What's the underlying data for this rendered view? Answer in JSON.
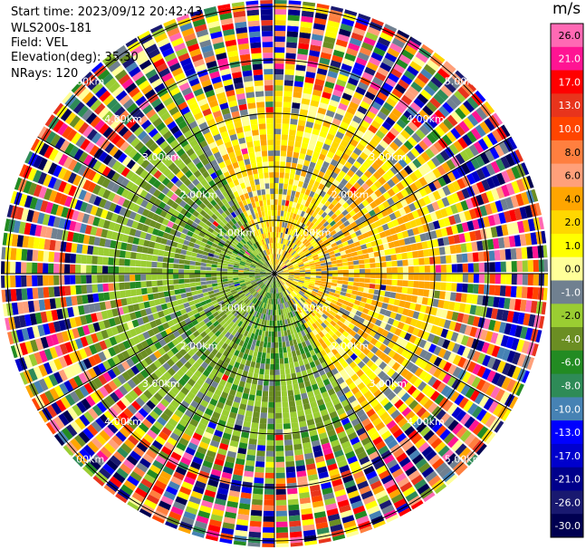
{
  "header": {
    "start_time": "Start time: 2023/09/12 20:42:43",
    "instrument": "WLS200s-181",
    "field": "Field: VEL",
    "elevation": "Elevation(deg): 35.30",
    "nrays": "NRays: 120"
  },
  "chart_data": {
    "type": "heatmap",
    "projection": "polar (PPI)",
    "field": "VEL",
    "units": "m/s",
    "nrays": 120,
    "elevation_deg": 35.3,
    "range_rings_km": [
      1.0,
      2.0,
      3.0,
      4.0,
      5.0
    ],
    "range_ring_labels": [
      "1.00km",
      "2.00km",
      "3.00km",
      "4.00km",
      "5.00km"
    ],
    "spokes_deg": [
      0,
      30,
      60,
      90,
      120,
      150,
      180,
      210,
      240,
      270,
      300,
      330
    ],
    "colorbar": {
      "unit_label": "m/s",
      "tick_labels": [
        "26.0",
        "21.0",
        "17.0",
        "13.0",
        "10.0",
        "8.0",
        "6.0",
        "4.0",
        "2.0",
        "1.0",
        "0.0",
        "-1.0",
        "-2.0",
        "-4.0",
        "-6.0",
        "-8.0",
        "-10.0",
        "-13.0",
        "-17.0",
        "-21.0",
        "-26.0",
        "-30.0"
      ],
      "colors": [
        "#ff69b4",
        "#ff1493",
        "#ff0000",
        "#e8341c",
        "#ff4500",
        "#ff7f3f",
        "#ffa07a",
        "#ffa500",
        "#ffd700",
        "#ffff00",
        "#ffff99",
        "#708090",
        "#9acd32",
        "#6b8e23",
        "#228b22",
        "#2e8b57",
        "#4682b4",
        "#0000ff",
        "#0000cd",
        "#00008b",
        "#191970",
        "#000050"
      ]
    },
    "description_regions": {
      "north_east": "positive velocities 1 to 6 m/s (yellow/orange)",
      "south_west": "negative velocities -1 to -6 m/s (olive/green)",
      "outer_ring": "noise, all colors"
    }
  }
}
